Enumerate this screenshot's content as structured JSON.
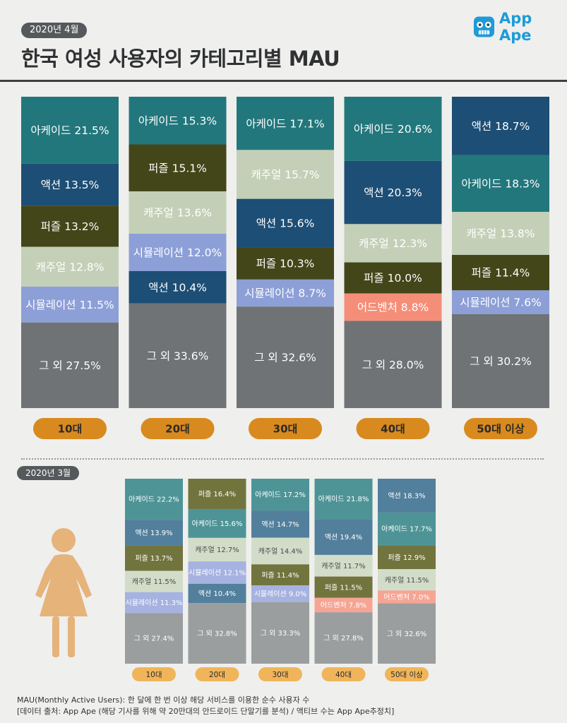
{
  "header": {
    "date_label": "2020년 4월",
    "title": "한국 여성 사용자의 카테고리별 MAU",
    "brand": "App Ape"
  },
  "colors": {
    "arcade": "#22777c",
    "action": "#1d4e75",
    "puzzle": "#434619",
    "casual": "#c3d0b7",
    "simulation": "#8d9fd7",
    "adventure": "#f58e78",
    "other": "#6f7375",
    "age_pill": "#d98a1e",
    "small_arcade": "#4e9497",
    "small_action": "#527f9c",
    "small_puzzle": "#72743e",
    "small_casual": "#d2ddc9",
    "small_simulation": "#a6b2e0",
    "small_adventure": "#f6a493",
    "small_other": "#9a9e9f",
    "small_pill": "#f0b55a",
    "figure": "#e6b37a"
  },
  "chart_data": [
    {
      "type": "bar",
      "stacked": true,
      "title": "2020년 4월",
      "categories": [
        "10대",
        "20대",
        "30대",
        "40대",
        "50대 이상"
      ],
      "stacks": [
        [
          {
            "name": "아케이드",
            "key": "arcade",
            "value": 21.5
          },
          {
            "name": "액션",
            "key": "action",
            "value": 13.5
          },
          {
            "name": "퍼즐",
            "key": "puzzle",
            "value": 13.2
          },
          {
            "name": "캐주얼",
            "key": "casual",
            "value": 12.8
          },
          {
            "name": "시뮬레이션",
            "key": "simulation",
            "value": 11.5
          },
          {
            "name": "그 외",
            "key": "other",
            "value": 27.5
          }
        ],
        [
          {
            "name": "아케이드",
            "key": "arcade",
            "value": 15.3
          },
          {
            "name": "퍼즐",
            "key": "puzzle",
            "value": 15.1
          },
          {
            "name": "캐주얼",
            "key": "casual",
            "value": 13.6
          },
          {
            "name": "시뮬레이션",
            "key": "simulation",
            "value": 12.0
          },
          {
            "name": "액션",
            "key": "action",
            "value": 10.4
          },
          {
            "name": "그 외",
            "key": "other",
            "value": 33.6
          }
        ],
        [
          {
            "name": "아케이드",
            "key": "arcade",
            "value": 17.1
          },
          {
            "name": "캐주얼",
            "key": "casual",
            "value": 15.7
          },
          {
            "name": "액션",
            "key": "action",
            "value": 15.6
          },
          {
            "name": "퍼즐",
            "key": "puzzle",
            "value": 10.3
          },
          {
            "name": "시뮬레이션",
            "key": "simulation",
            "value": 8.7
          },
          {
            "name": "그 외",
            "key": "other",
            "value": 32.6
          }
        ],
        [
          {
            "name": "아케이드",
            "key": "arcade",
            "value": 20.6
          },
          {
            "name": "액션",
            "key": "action",
            "value": 20.3
          },
          {
            "name": "캐주얼",
            "key": "casual",
            "value": 12.3
          },
          {
            "name": "퍼즐",
            "key": "puzzle",
            "value": 10.0
          },
          {
            "name": "어드벤처",
            "key": "adventure",
            "value": 8.8
          },
          {
            "name": "그 외",
            "key": "other",
            "value": 28.0
          }
        ],
        [
          {
            "name": "액션",
            "key": "action",
            "value": 18.7
          },
          {
            "name": "아케이드",
            "key": "arcade",
            "value": 18.3
          },
          {
            "name": "캐주얼",
            "key": "casual",
            "value": 13.8
          },
          {
            "name": "퍼즐",
            "key": "puzzle",
            "value": 11.4
          },
          {
            "name": "시뮬레이션",
            "key": "simulation",
            "value": 7.6
          },
          {
            "name": "그 외",
            "key": "other",
            "value": 30.2
          }
        ]
      ]
    },
    {
      "type": "bar",
      "stacked": true,
      "title": "2020년 3월",
      "categories": [
        "10대",
        "20대",
        "30대",
        "40대",
        "50대 이상"
      ],
      "stacks": [
        [
          {
            "name": "아케이드",
            "key": "arcade",
            "value": 22.2
          },
          {
            "name": "액션",
            "key": "action",
            "value": 13.9
          },
          {
            "name": "퍼즐",
            "key": "puzzle",
            "value": 13.7
          },
          {
            "name": "캐주얼",
            "key": "casual",
            "value": 11.5
          },
          {
            "name": "시뮬레이션",
            "key": "simulation",
            "value": 11.3
          },
          {
            "name": "그 외",
            "key": "other",
            "value": 27.4
          }
        ],
        [
          {
            "name": "퍼즐",
            "key": "puzzle",
            "value": 16.4
          },
          {
            "name": "아케이드",
            "key": "arcade",
            "value": 15.6
          },
          {
            "name": "캐주얼",
            "key": "casual",
            "value": 12.7
          },
          {
            "name": "시뮬레이션",
            "key": "simulation",
            "value": 12.1
          },
          {
            "name": "액션",
            "key": "action",
            "value": 10.4
          },
          {
            "name": "그 외",
            "key": "other",
            "value": 32.8
          }
        ],
        [
          {
            "name": "아케이드",
            "key": "arcade",
            "value": 17.2
          },
          {
            "name": "액션",
            "key": "action",
            "value": 14.7
          },
          {
            "name": "캐주얼",
            "key": "casual",
            "value": 14.4
          },
          {
            "name": "퍼즐",
            "key": "puzzle",
            "value": 11.4
          },
          {
            "name": "시뮬레이션",
            "key": "simulation",
            "value": 9.0
          },
          {
            "name": "그 외",
            "key": "other",
            "value": 33.3
          }
        ],
        [
          {
            "name": "아케이드",
            "key": "arcade",
            "value": 21.8
          },
          {
            "name": "액션",
            "key": "action",
            "value": 19.4
          },
          {
            "name": "캐주얼",
            "key": "casual",
            "value": 11.7
          },
          {
            "name": "퍼즐",
            "key": "puzzle",
            "value": 11.5
          },
          {
            "name": "어드벤처",
            "key": "adventure",
            "value": 7.8
          },
          {
            "name": "그 외",
            "key": "other",
            "value": 27.8
          }
        ],
        [
          {
            "name": "액션",
            "key": "action",
            "value": 18.3
          },
          {
            "name": "아케이드",
            "key": "arcade",
            "value": 17.7
          },
          {
            "name": "퍼즐",
            "key": "puzzle",
            "value": 12.9
          },
          {
            "name": "캐주얼",
            "key": "casual",
            "value": 11.5
          },
          {
            "name": "어드벤처",
            "key": "adventure",
            "value": 7.0
          },
          {
            "name": "그 외",
            "key": "other",
            "value": 32.6
          }
        ]
      ]
    }
  ],
  "footnote": {
    "line1": "MAU(Monthly Active Users):  한 달에 한 번 이상 해당 서비스를 이용한 순수 사용자 수",
    "line2": "[데이터 출처: App Ape (해당 기사를 위해 약 20만대의 안드로이드 단말기를 분석) / 액티브 수는 App Ape추정치]"
  }
}
